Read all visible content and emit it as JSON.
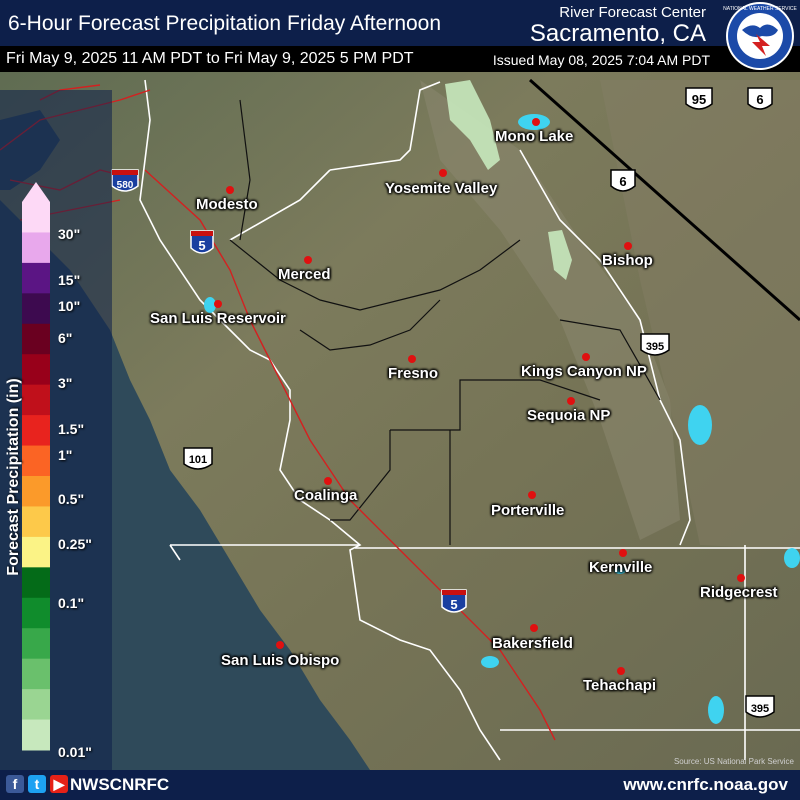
{
  "header": {
    "title": "6-Hour Forecast Precipitation Friday Afternoon",
    "org": "River Forecast Center",
    "office": "Sacramento, CA",
    "period": "Fri May 9, 2025 11 AM PDT to Fri May 9, 2025 5 PM PDT",
    "issued": "Issued May 08, 2025 7:04 AM PDT",
    "logo_text": "NATIONAL WEATHER SERVICE"
  },
  "legend": {
    "title": "Forecast Precipitation (in)",
    "ticks": [
      "30\"",
      "15\"",
      "10\"",
      "6\"",
      "3\"",
      "1.5\"",
      "1\"",
      "0.5\"",
      "0.25\"",
      "0.1\"",
      "0.01\""
    ],
    "colors": [
      "#fdd9f6",
      "#e8a8ec",
      "#5b1584",
      "#3d0a4f",
      "#6a0020",
      "#98001a",
      "#c0101b",
      "#e8231e",
      "#fb6424",
      "#fb9a2a",
      "#fdc94a",
      "#fbf386",
      "#046b18",
      "#108c2c",
      "#38a84a",
      "#6ac06c",
      "#9ad592",
      "#c7e8bd"
    ]
  },
  "cities": [
    {
      "name": "Modesto"
    },
    {
      "name": "Merced"
    },
    {
      "name": "San Luis Reservoir"
    },
    {
      "name": "Fresno"
    },
    {
      "name": "Yosemite Valley"
    },
    {
      "name": "Mono Lake"
    },
    {
      "name": "Bishop"
    },
    {
      "name": "Kings Canyon NP"
    },
    {
      "name": "Sequoia NP"
    },
    {
      "name": "Porterville"
    },
    {
      "name": "Coalinga"
    },
    {
      "name": "Kernville"
    },
    {
      "name": "Ridgecrest"
    },
    {
      "name": "Bakersfield"
    },
    {
      "name": "Tehachapi"
    },
    {
      "name": "San Luis Obispo"
    }
  ],
  "highways": {
    "interstate_580": "580",
    "interstate_5_north": "5",
    "interstate_5_south": "5",
    "us_95": "95",
    "us_6_east": "6",
    "us_6_west": "6",
    "us_395_north": "395",
    "us_395_south": "395",
    "us_101": "101",
    "interstate_word": "INTERSTATE"
  },
  "map_credit": "Source: US National Park Service",
  "footer": {
    "social_handle": "NWSCNRFC",
    "website": "www.cnrfc.noaa.gov",
    "icons": [
      "facebook-icon",
      "twitter-icon",
      "youtube-icon"
    ]
  },
  "colors": {
    "header_bg": "#0d1f4a",
    "terrain": "#6f7355",
    "ocean": "#2f4a5a",
    "boundary_red": "#d42020",
    "county_line": "#000000",
    "state_line": "#ffffff",
    "lake": "#3fd3f0",
    "city_dot": "#e01010"
  }
}
